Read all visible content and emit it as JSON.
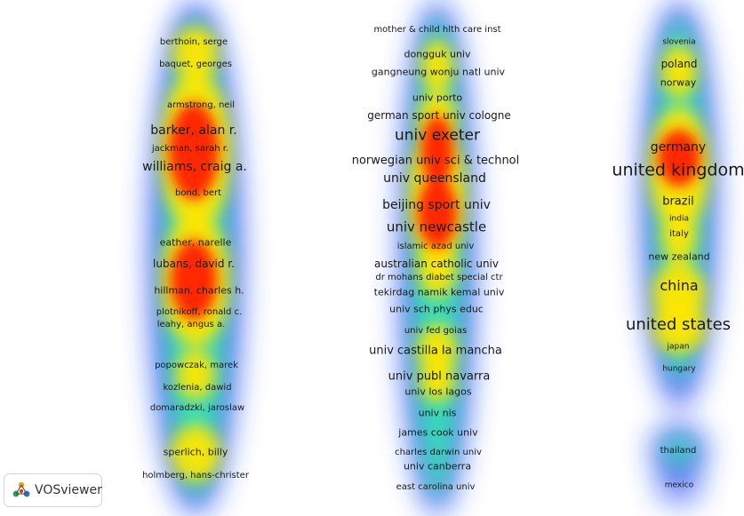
{
  "app": {
    "name": "VOSviewer"
  },
  "map": {
    "view": "density visualization",
    "colors": {
      "low": "#1a3ff0",
      "mid": "#35e2b4",
      "midhigh": "#c8f23a",
      "high": "#ffe600",
      "peak": "#ff1e00"
    },
    "columns": [
      {
        "name": "authors",
        "items": [
          {
            "label": "berthoin, serge",
            "weight": 0.3
          },
          {
            "label": "baquet, georges",
            "weight": 0.3
          },
          {
            "label": "armstrong, neil",
            "weight": 0.3
          },
          {
            "label": "barker, alan r.",
            "weight": 0.9
          },
          {
            "label": "jackman, sarah r.",
            "weight": 0.3
          },
          {
            "label": "williams, craig a.",
            "weight": 0.9
          },
          {
            "label": "bond, bert",
            "weight": 0.3
          },
          {
            "label": "eather, narelle",
            "weight": 0.45
          },
          {
            "label": "lubans, david r.",
            "weight": 0.7
          },
          {
            "label": "hillman, charles h.",
            "weight": 0.7
          },
          {
            "label": "plotnikoff, ronald c.",
            "weight": 0.3
          },
          {
            "label": "leahy, angus a.",
            "weight": 0.3
          },
          {
            "label": "popowczak, marek",
            "weight": 0.3
          },
          {
            "label": "kozlenia, dawid",
            "weight": 0.3
          },
          {
            "label": "domaradzki, jaroslaw",
            "weight": 0.3
          },
          {
            "label": "sperlich, billy",
            "weight": 0.45
          },
          {
            "label": "holmberg, hans-christer",
            "weight": 0.3
          }
        ]
      },
      {
        "name": "institutions",
        "items": [
          {
            "label": "mother & child hlth care inst",
            "weight": 0.3
          },
          {
            "label": "dongguk univ",
            "weight": 0.35
          },
          {
            "label": "gangneung wonju natl univ",
            "weight": 0.4
          },
          {
            "label": "univ porto",
            "weight": 0.35
          },
          {
            "label": "german sport univ cologne",
            "weight": 0.5
          },
          {
            "label": "univ exeter",
            "weight": 1.0
          },
          {
            "label": "norwegian univ sci & technol",
            "weight": 0.6
          },
          {
            "label": "univ queensland",
            "weight": 0.7
          },
          {
            "label": "beijing sport univ",
            "weight": 0.7
          },
          {
            "label": "univ newcastle",
            "weight": 0.85
          },
          {
            "label": "islamic azad univ",
            "weight": 0.3
          },
          {
            "label": "australian catholic univ",
            "weight": 0.55
          },
          {
            "label": "dr mohans diabet special ctr",
            "weight": 0.3
          },
          {
            "label": "tekirdag namik kemal univ",
            "weight": 0.4
          },
          {
            "label": "univ sch phys educ",
            "weight": 0.4
          },
          {
            "label": "univ fed goias",
            "weight": 0.3
          },
          {
            "label": "univ castilla la mancha",
            "weight": 0.6
          },
          {
            "label": "univ publ navarra",
            "weight": 0.55
          },
          {
            "label": "univ los lagos",
            "weight": 0.4
          },
          {
            "label": "univ nis",
            "weight": 0.35
          },
          {
            "label": "james cook univ",
            "weight": 0.35
          },
          {
            "label": "charles darwin univ",
            "weight": 0.3
          },
          {
            "label": "univ canberra",
            "weight": 0.35
          },
          {
            "label": "east carolina univ",
            "weight": 0.3
          }
        ]
      },
      {
        "name": "countries",
        "items": [
          {
            "label": "slovenia",
            "weight": 0.25
          },
          {
            "label": "poland",
            "weight": 0.45
          },
          {
            "label": "norway",
            "weight": 0.4
          },
          {
            "label": "germany",
            "weight": 0.7
          },
          {
            "label": "united kingdom",
            "weight": 1.0
          },
          {
            "label": "brazil",
            "weight": 0.55
          },
          {
            "label": "india",
            "weight": 0.25
          },
          {
            "label": "italy",
            "weight": 0.25
          },
          {
            "label": "new zealand",
            "weight": 0.35
          },
          {
            "label": "china",
            "weight": 0.75
          },
          {
            "label": "united states",
            "weight": 0.9
          },
          {
            "label": "japan",
            "weight": 0.25
          },
          {
            "label": "hungary",
            "weight": 0.25
          },
          {
            "label": "thailand",
            "weight": 0.3
          },
          {
            "label": "mexico",
            "weight": 0.25
          }
        ]
      }
    ]
  }
}
